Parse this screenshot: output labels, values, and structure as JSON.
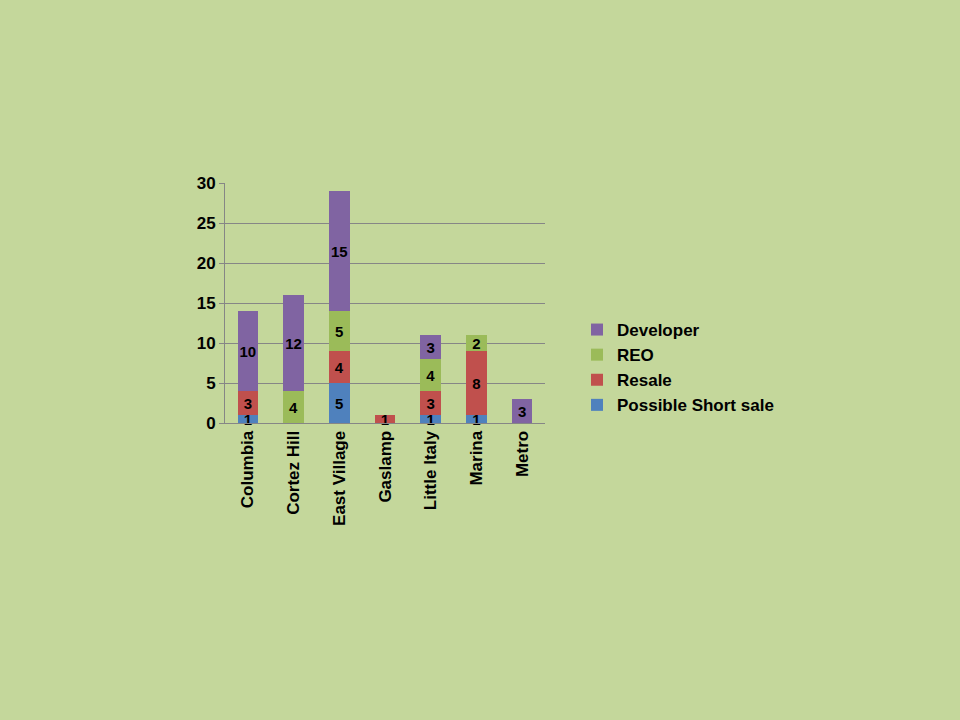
{
  "chart_data": {
    "type": "bar",
    "stacked": true,
    "data_labels": true,
    "grid": true,
    "legend": "right",
    "categories": [
      "Columbia",
      "Cortez Hill",
      "East Village",
      "Gaslamp",
      "Little Italy",
      "Marina",
      "Metro"
    ],
    "series": [
      {
        "name": "Possible Short sale",
        "color": "#4f81bd",
        "values": [
          1,
          null,
          5,
          null,
          1,
          1,
          null
        ]
      },
      {
        "name": "Resale",
        "color": "#c0504d",
        "values": [
          3,
          null,
          4,
          1,
          3,
          8,
          null
        ]
      },
      {
        "name": "REO",
        "color": "#9bbb59",
        "values": [
          null,
          4,
          5,
          null,
          4,
          2,
          null
        ]
      },
      {
        "name": "Developer",
        "color": "#8064a2",
        "values": [
          10,
          12,
          15,
          null,
          3,
          null,
          3
        ]
      }
    ],
    "ylim": [
      0,
      30
    ],
    "yticks": [
      0,
      5,
      10,
      15,
      20,
      25,
      30
    ]
  }
}
